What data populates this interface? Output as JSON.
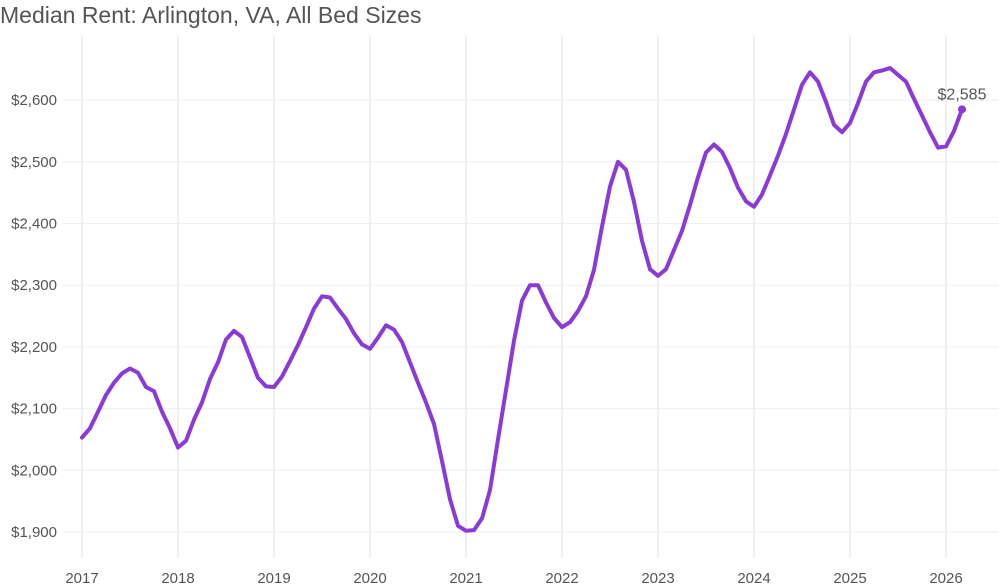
{
  "chart_data": {
    "type": "line",
    "title": "Median Rent: Arlington, VA, All Bed Sizes",
    "xlabel": "",
    "ylabel": "",
    "ylim": [
      1880,
      2680
    ],
    "xlim": [
      2017,
      2026.3
    ],
    "grid": true,
    "x_ticks": [
      "2017",
      "2018",
      "2019",
      "2020",
      "2021",
      "2022",
      "2023",
      "2024",
      "2025",
      "2026"
    ],
    "y_ticks": [
      {
        "value": 1900,
        "label": "$1,900"
      },
      {
        "value": 2000,
        "label": "$2,000"
      },
      {
        "value": 2100,
        "label": "$2,100"
      },
      {
        "value": 2200,
        "label": "$2,200"
      },
      {
        "value": 2300,
        "label": "$2,300"
      },
      {
        "value": 2400,
        "label": "$2,400"
      },
      {
        "value": 2500,
        "label": "$2,500"
      },
      {
        "value": 2600,
        "label": "$2,600"
      }
    ],
    "series": [
      {
        "name": "Median Rent",
        "color": "#8a3ad6",
        "start": "2017-01",
        "frequency": "monthly",
        "values": [
          2053,
          2068,
          2095,
          2122,
          2142,
          2157,
          2165,
          2158,
          2135,
          2128,
          2095,
          2068,
          2037,
          2048,
          2082,
          2110,
          2148,
          2175,
          2212,
          2226,
          2216,
          2183,
          2150,
          2136,
          2135,
          2152,
          2177,
          2203,
          2232,
          2262,
          2282,
          2280,
          2262,
          2245,
          2222,
          2204,
          2197,
          2215,
          2235,
          2228,
          2208,
          2175,
          2142,
          2110,
          2075,
          2015,
          1953,
          1910,
          1902,
          1903,
          1922,
          1968,
          2050,
          2130,
          2210,
          2275,
          2300,
          2300,
          2272,
          2247,
          2232,
          2240,
          2258,
          2282,
          2325,
          2395,
          2460,
          2500,
          2487,
          2435,
          2372,
          2326,
          2315,
          2326,
          2357,
          2388,
          2430,
          2475,
          2515,
          2528,
          2516,
          2490,
          2458,
          2436,
          2427,
          2447,
          2478,
          2510,
          2545,
          2585,
          2625,
          2645,
          2630,
          2597,
          2560,
          2548,
          2563,
          2595,
          2630,
          2645,
          2648,
          2652,
          2641,
          2630,
          2602,
          2575,
          2548,
          2523,
          2525,
          2550,
          2585
        ]
      }
    ],
    "annotations": [
      {
        "text": "$2,585",
        "target": "last-point"
      }
    ]
  }
}
